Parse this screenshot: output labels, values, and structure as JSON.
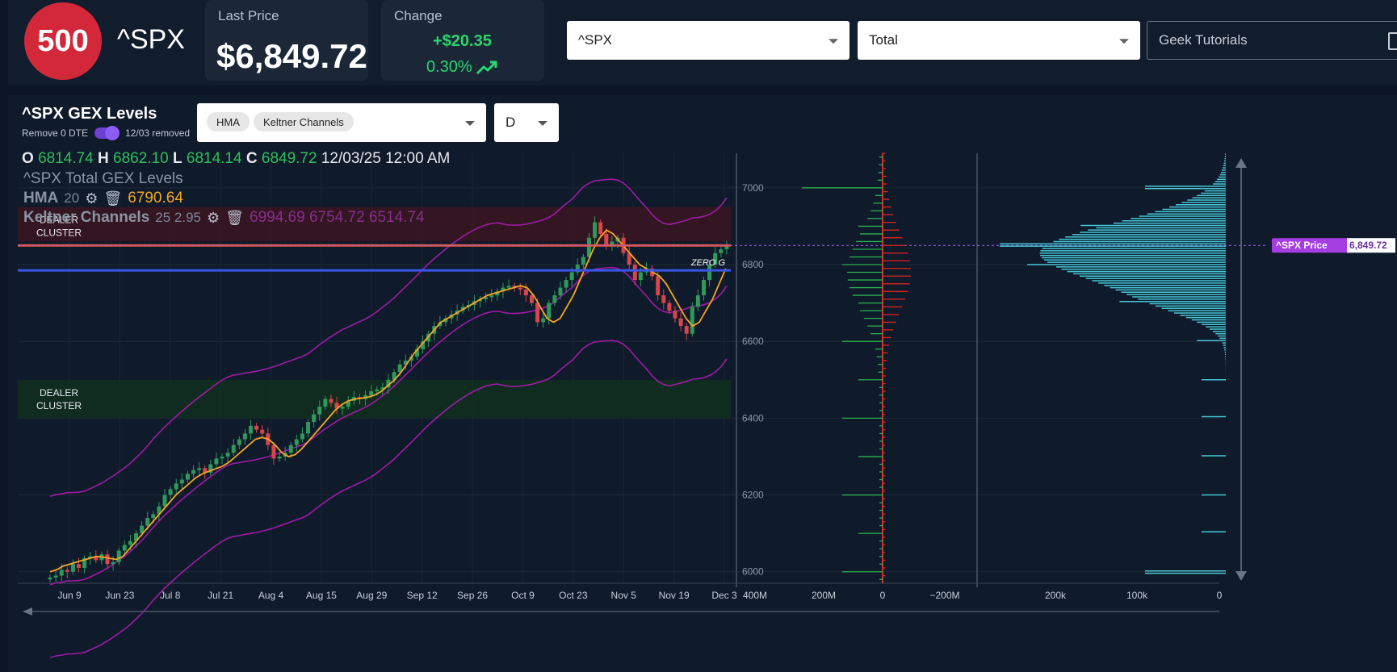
{
  "header": {
    "logo_text": "500",
    "symbol": "^SPX",
    "last_price_label": "Last Price",
    "last_price": "$6,849.72",
    "change_label": "Change",
    "change_amount": "+$20.35",
    "change_pct": "0.30%",
    "trend_icon": "trend-up-icon",
    "symbol_select_value": "^SPX",
    "mode_select_value": "Total",
    "tutorials_placeholder": "Geek Tutorials"
  },
  "panel": {
    "title": "^SPX GEX Levels",
    "remove_label": "Remove 0 DTE",
    "removed_note": "12/03 removed",
    "indicator_chips": [
      "HMA",
      "Keltner Channels"
    ],
    "timeframe": "D",
    "ohlc": {
      "o_label": "O",
      "o": "6814.74",
      "h_label": "H",
      "h": "6862.10",
      "l_label": "L",
      "l": "6814.14",
      "c_label": "C",
      "c": "6849.72",
      "datetime": "12/03/25 12:00 AM"
    },
    "legend": {
      "total": "^SPX Total GEX Levels",
      "hma_label": "HMA",
      "hma_param": "20",
      "hma_value": "6790.64",
      "keltner_label": "Keltner Channels",
      "keltner_param": "25 2.95",
      "keltner_values": "6994.69 6754.72 6514.74"
    }
  },
  "chart_data": {
    "type": "candlestick",
    "x_ticks": [
      "Jun 9",
      "Jun 23",
      "Jul 8",
      "Jul 21",
      "Aug 4",
      "Aug 15",
      "Aug 29",
      "Sep 12",
      "Sep 26",
      "Oct 9",
      "Oct 23",
      "Nov 5",
      "Nov 19",
      "Dec 3"
    ],
    "y_ticks": [
      6000,
      6200,
      6400,
      6600,
      6800,
      7000
    ],
    "y_range": [
      5970,
      7090
    ],
    "zones": [
      {
        "label": "DEALER CLUSTER",
        "from": 6860,
        "to": 6950,
        "color": "#3a1620"
      },
      {
        "label": "DEALER CLUSTER",
        "from": 6400,
        "to": 6500,
        "color": "#10301f"
      }
    ],
    "levels": [
      {
        "name": "resistance",
        "value": 6850,
        "color": "#e0533c"
      },
      {
        "name": "zero-gamma",
        "label": "ZERO G",
        "value": 6785,
        "color": "#3a56e8"
      }
    ],
    "current_price": {
      "label": "^SPX Price",
      "value": "6,849.72"
    },
    "close_series": [
      5985,
      5990,
      6005,
      6000,
      6020,
      6010,
      6035,
      6040,
      6030,
      6045,
      6020,
      6025,
      6055,
      6070,
      6080,
      6100,
      6120,
      6140,
      6150,
      6170,
      6200,
      6215,
      6230,
      6240,
      6255,
      6265,
      6270,
      6258,
      6280,
      6295,
      6300,
      6310,
      6330,
      6345,
      6360,
      6380,
      6370,
      6360,
      6330,
      6295,
      6300,
      6310,
      6330,
      6345,
      6360,
      6390,
      6410,
      6430,
      6450,
      6440,
      6425,
      6430,
      6445,
      6455,
      6450,
      6460,
      6470,
      6475,
      6480,
      6500,
      6520,
      6540,
      6550,
      6560,
      6580,
      6600,
      6620,
      6640,
      6650,
      6660,
      6670,
      6680,
      6690,
      6695,
      6705,
      6710,
      6715,
      6720,
      6730,
      6740,
      6745,
      6740,
      6735,
      6720,
      6700,
      6650,
      6660,
      6700,
      6720,
      6740,
      6760,
      6780,
      6800,
      6820,
      6870,
      6910,
      6880,
      6850,
      6860,
      6870,
      6830,
      6800,
      6760,
      6780,
      6790,
      6770,
      6720,
      6700,
      6680,
      6660,
      6640,
      6620,
      6690,
      6720,
      6760,
      6800,
      6830,
      6840,
      6850
    ],
    "hma_series": [
      6000,
      6005,
      6015,
      6020,
      6025,
      6030,
      6035,
      6040,
      6038,
      6035,
      6032,
      6040,
      6060,
      6080,
      6100,
      6120,
      6140,
      6160,
      6180,
      6200,
      6215,
      6230,
      6245,
      6255,
      6262,
      6268,
      6275,
      6285,
      6300,
      6315,
      6330,
      6345,
      6350,
      6345,
      6330,
      6310,
      6300,
      6305,
      6320,
      6340,
      6360,
      6380,
      6400,
      6420,
      6435,
      6445,
      6450,
      6452,
      6455,
      6460,
      6470,
      6485,
      6500,
      6520,
      6545,
      6570,
      6590,
      6610,
      6630,
      6650,
      6660,
      6670,
      6680,
      6690,
      6700,
      6710,
      6720,
      6725,
      6730,
      6735,
      6740,
      6745,
      6740,
      6720,
      6690,
      6660,
      6650,
      6660,
      6690,
      6720,
      6760,
      6800,
      6840,
      6870,
      6890,
      6880,
      6860,
      6840,
      6820,
      6800,
      6790,
      6780,
      6770,
      6750,
      6720,
      6690,
      6660,
      6640,
      6650,
      6680,
      6710,
      6750,
      6790
    ],
    "keltner": {
      "upper_end": 6994.69,
      "middle_end": 6754.72,
      "lower_end": 6514.74
    },
    "gex_axis": [
      "400M",
      "200M",
      "0",
      "−200M"
    ],
    "volume_axis": [
      "200k",
      "100k",
      "0"
    ]
  }
}
